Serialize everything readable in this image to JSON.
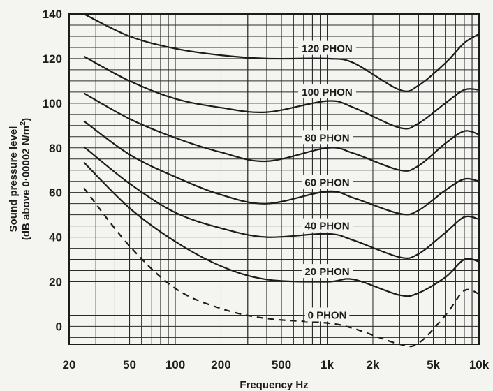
{
  "chart_data": {
    "type": "line",
    "title": "",
    "xlabel": "Frequency Hz",
    "ylabel_line1": "Sound pressure level",
    "ylabel_line2_main": "(dB above 0·00002 N/m",
    "ylabel_line2_sup": "2",
    "ylabel_line2_end": ")",
    "x_scale": "log",
    "xlim": [
      20,
      10000
    ],
    "ylim": [
      -8,
      140
    ],
    "grid": true,
    "x_ticks": [
      {
        "value": 20,
        "label": "20"
      },
      {
        "value": 50,
        "label": "50"
      },
      {
        "value": 100,
        "label": "100"
      },
      {
        "value": 200,
        "label": "200"
      },
      {
        "value": 500,
        "label": "500"
      },
      {
        "value": 1000,
        "label": "1k"
      },
      {
        "value": 2000,
        "label": "2k"
      },
      {
        "value": 5000,
        "label": "5k"
      },
      {
        "value": 10000,
        "label": "10k"
      }
    ],
    "y_ticks": [
      {
        "value": 0,
        "label": "0"
      },
      {
        "value": 20,
        "label": "20"
      },
      {
        "value": 40,
        "label": "40"
      },
      {
        "value": 60,
        "label": "60"
      },
      {
        "value": 80,
        "label": "80"
      },
      {
        "value": 100,
        "label": "100"
      },
      {
        "value": 120,
        "label": "120"
      },
      {
        "value": 140,
        "label": "140"
      }
    ],
    "series": [
      {
        "name": "120 PHON",
        "dashed": false,
        "x": [
          25,
          50,
          100,
          200,
          400,
          1000,
          1500,
          3000,
          4000,
          6000,
          8000,
          10000
        ],
        "y": [
          140,
          130,
          124.5,
          121.5,
          120,
          120,
          118,
          106,
          108,
          118,
          127,
          131
        ]
      },
      {
        "name": "100 PHON",
        "dashed": false,
        "x": [
          25,
          50,
          100,
          200,
          400,
          1000,
          1500,
          3000,
          4000,
          6000,
          8000,
          10000
        ],
        "y": [
          121,
          110,
          102,
          98,
          96,
          101,
          98,
          89,
          91,
          100,
          106,
          106
        ]
      },
      {
        "name": "80 PHON",
        "dashed": false,
        "x": [
          25,
          50,
          100,
          200,
          400,
          1000,
          1500,
          3000,
          4000,
          6000,
          8000,
          10000
        ],
        "y": [
          104.5,
          93,
          84.5,
          78,
          74,
          80,
          77.5,
          70,
          72,
          82,
          87.5,
          86
        ]
      },
      {
        "name": "60 PHON",
        "dashed": false,
        "x": [
          25,
          50,
          100,
          200,
          400,
          1000,
          1500,
          3000,
          4000,
          6000,
          8000,
          10000
        ],
        "y": [
          92,
          77,
          67,
          59,
          55,
          60.5,
          57.5,
          50.5,
          52,
          61,
          66,
          65
        ]
      },
      {
        "name": "40 PHON",
        "dashed": false,
        "x": [
          25,
          50,
          100,
          200,
          400,
          1000,
          1500,
          3000,
          4000,
          6000,
          8000,
          10000
        ],
        "y": [
          80.5,
          64,
          51,
          44,
          40,
          41.5,
          38.5,
          31,
          32.5,
          42,
          49,
          48
        ]
      },
      {
        "name": "20 PHON",
        "dashed": false,
        "x": [
          25,
          50,
          100,
          200,
          400,
          1000,
          1500,
          3000,
          4000,
          6000,
          8000,
          10000
        ],
        "y": [
          73.5,
          53,
          38,
          27,
          21,
          20,
          21,
          14,
          15,
          22,
          30,
          29
        ]
      },
      {
        "name": "0 PHON",
        "dashed": true,
        "x": [
          25,
          50,
          100,
          200,
          400,
          1000,
          1500,
          3000,
          4000,
          6000,
          8000,
          10000
        ],
        "y": [
          62,
          36,
          17,
          8,
          3.5,
          1.5,
          -1,
          -8,
          -7.5,
          5,
          16,
          14.5
        ]
      }
    ],
    "curve_labels": [
      {
        "text": "120 PHON",
        "x": 1000,
        "y": 124.5
      },
      {
        "text": "100 PHON",
        "x": 1000,
        "y": 105
      },
      {
        "text": "80 PHON",
        "x": 1000,
        "y": 84.5
      },
      {
        "text": "60 PHON",
        "x": 1000,
        "y": 64.5
      },
      {
        "text": "40 PHON",
        "x": 1000,
        "y": 45
      },
      {
        "text": "20 PHON",
        "x": 1000,
        "y": 24.5
      },
      {
        "text": "0 PHON",
        "x": 1000,
        "y": 5
      }
    ]
  }
}
